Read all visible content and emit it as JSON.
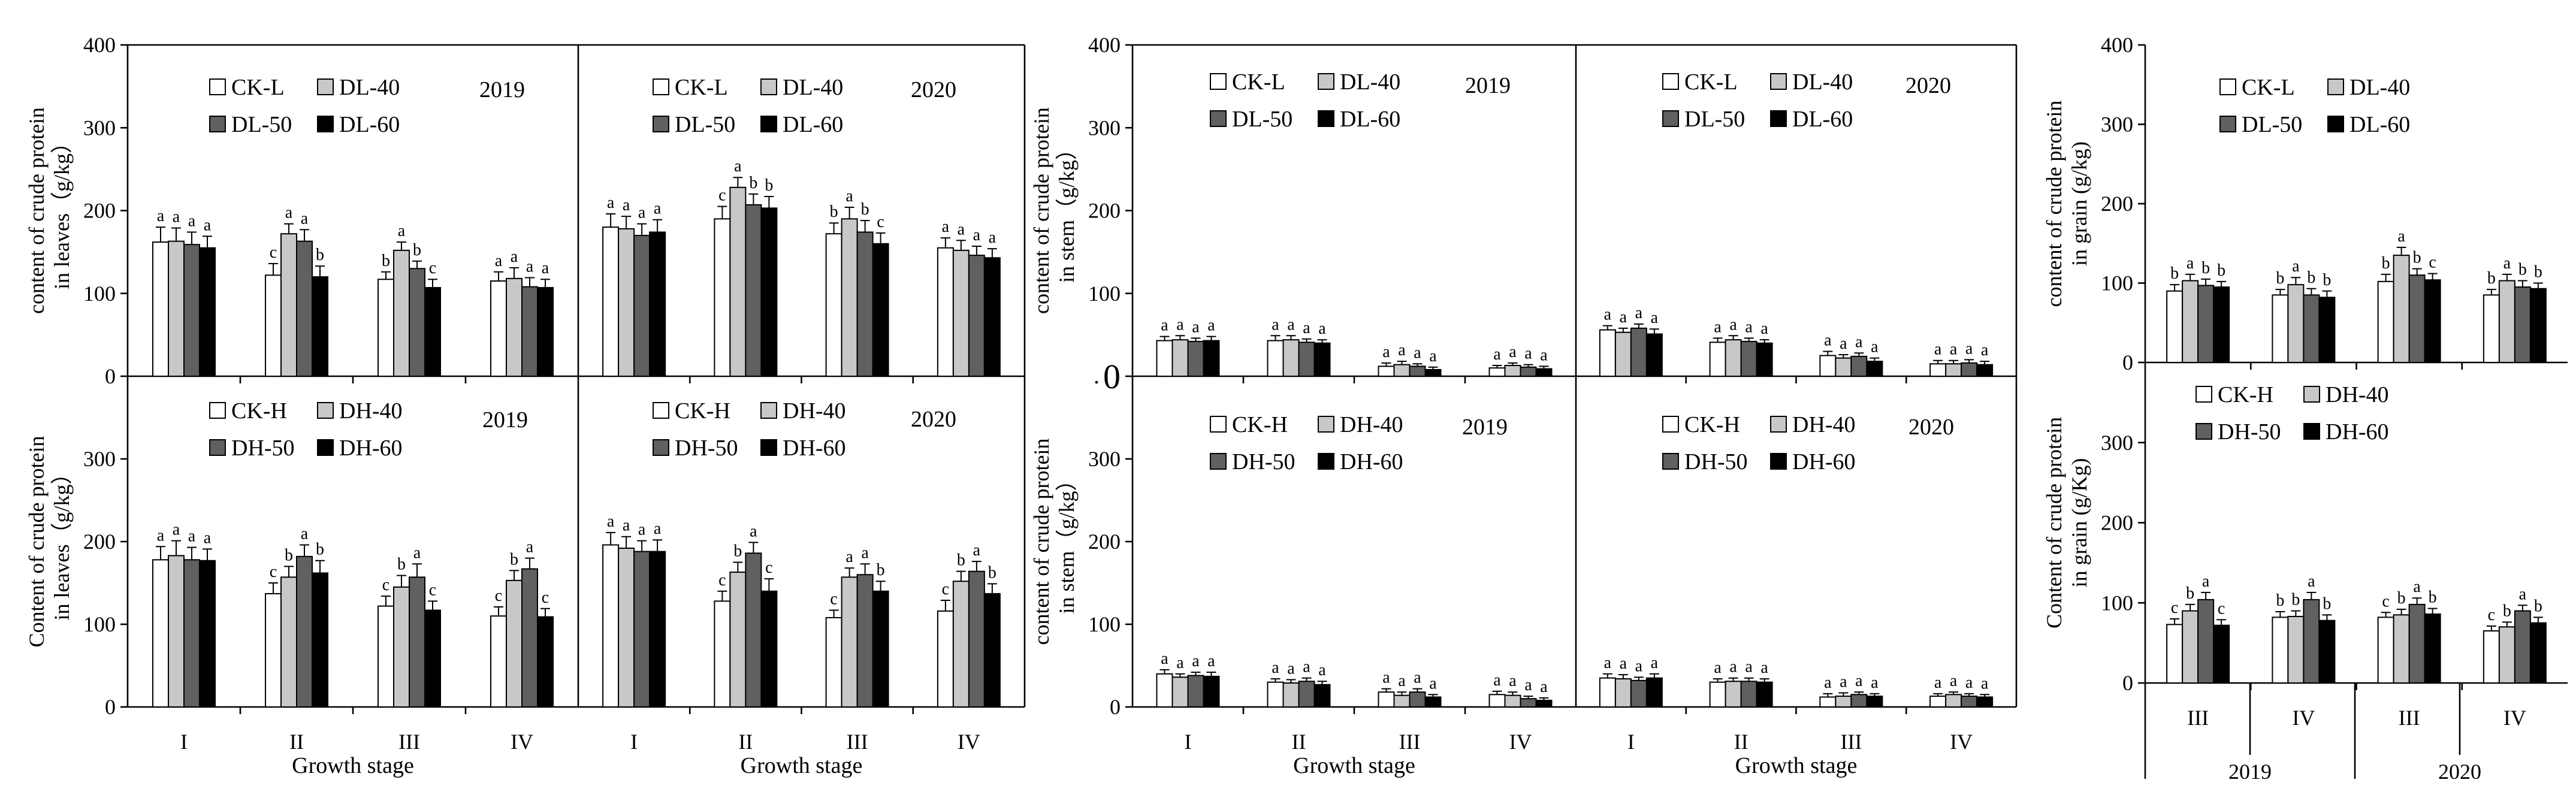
{
  "colors": {
    "CK": "#ffffff",
    "T40": "#c8c8c8",
    "T50": "#606060",
    "T60": "#000000",
    "ink": "#000000"
  },
  "figure": {
    "stray_mark": "."
  },
  "chart_data": [
    {
      "id": "leaf-low-2019",
      "type": "bar",
      "year_label": "2019",
      "ylabel": [
        "content of crude protein",
        "in leaves（g/kg）"
      ],
      "xlabel": "",
      "ylim": [
        0,
        400
      ],
      "yticks": [
        0,
        100,
        200,
        300,
        400
      ],
      "categories": [
        "",
        "",
        "",
        ""
      ],
      "legend": [
        "CK-L",
        "DL-40",
        "DL-50",
        "DL-60"
      ],
      "series": [
        {
          "name": "CK-L",
          "values": [
            162,
            122,
            117,
            115
          ],
          "errors": [
            18,
            14,
            9,
            11
          ],
          "letters": [
            "a",
            "c",
            "b",
            "a"
          ]
        },
        {
          "name": "DL-40",
          "values": [
            163,
            172,
            152,
            118
          ],
          "errors": [
            16,
            12,
            10,
            13
          ],
          "letters": [
            "a",
            "a",
            "a",
            "a"
          ]
        },
        {
          "name": "DL-50",
          "values": [
            159,
            163,
            130,
            108
          ],
          "errors": [
            15,
            14,
            9,
            11
          ],
          "letters": [
            "a",
            "a",
            "b",
            "a"
          ]
        },
        {
          "name": "DL-60",
          "values": [
            155,
            120,
            107,
            107
          ],
          "errors": [
            14,
            13,
            10,
            10
          ],
          "letters": [
            "a",
            "b",
            "c",
            "a"
          ]
        }
      ]
    },
    {
      "id": "leaf-low-2020",
      "type": "bar",
      "year_label": "2020",
      "ylabel": [],
      "xlabel": "",
      "ylim": [
        0,
        400
      ],
      "yticks": [],
      "categories": [
        "",
        "",
        "",
        ""
      ],
      "legend": [
        "CK-L",
        "DL-40",
        "DL-50",
        "DL-60"
      ],
      "series": [
        {
          "name": "CK-L",
          "values": [
            180,
            190,
            172,
            155
          ],
          "errors": [
            16,
            15,
            13,
            12
          ],
          "letters": [
            "a",
            "c",
            "b",
            "a"
          ]
        },
        {
          "name": "DL-40",
          "values": [
            178,
            228,
            190,
            152
          ],
          "errors": [
            15,
            12,
            14,
            12
          ],
          "letters": [
            "a",
            "a",
            "a",
            "a"
          ]
        },
        {
          "name": "DL-50",
          "values": [
            170,
            207,
            174,
            146
          ],
          "errors": [
            14,
            13,
            14,
            11
          ],
          "letters": [
            "a",
            "b",
            "b",
            "a"
          ]
        },
        {
          "name": "DL-60",
          "values": [
            174,
            203,
            160,
            143
          ],
          "errors": [
            15,
            14,
            13,
            11
          ],
          "letters": [
            "a",
            "b",
            "c",
            "a"
          ]
        }
      ]
    },
    {
      "id": "leaf-high-2019",
      "type": "bar",
      "year_label": "2019",
      "ylabel": [
        "Content of crude protein",
        "in leaves（g/kg）"
      ],
      "xlabel": "Growth stage",
      "ylim": [
        0,
        400
      ],
      "yticks": [
        0,
        100,
        200,
        300
      ],
      "categories": [
        "I",
        "II",
        "III",
        "IV"
      ],
      "legend": [
        "CK-H",
        "DH-40",
        "DH-50",
        "DH-60"
      ],
      "series": [
        {
          "name": "CK-H",
          "values": [
            178,
            137,
            122,
            110
          ],
          "errors": [
            16,
            13,
            12,
            11
          ],
          "letters": [
            "a",
            "c",
            "c",
            "c"
          ]
        },
        {
          "name": "DH-40",
          "values": [
            183,
            157,
            145,
            153
          ],
          "errors": [
            18,
            13,
            14,
            12
          ],
          "letters": [
            "a",
            "b",
            "b",
            "b"
          ]
        },
        {
          "name": "DH-50",
          "values": [
            178,
            182,
            157,
            167
          ],
          "errors": [
            15,
            14,
            16,
            13
          ],
          "letters": [
            "a",
            "a",
            "a",
            "a"
          ]
        },
        {
          "name": "DH-60",
          "values": [
            177,
            162,
            117,
            109
          ],
          "errors": [
            14,
            15,
            11,
            10
          ],
          "letters": [
            "a",
            "b",
            "c",
            "c"
          ]
        }
      ]
    },
    {
      "id": "leaf-high-2020",
      "type": "bar",
      "year_label": "2020",
      "ylabel": [],
      "xlabel": "Growth stage",
      "ylim": [
        0,
        400
      ],
      "yticks": [],
      "categories": [
        "I",
        "II",
        "III",
        "IV"
      ],
      "legend": [
        "CK-H",
        "DH-40",
        "DH-50",
        "DH-60"
      ],
      "series": [
        {
          "name": "CK-H",
          "values": [
            196,
            128,
            108,
            116
          ],
          "errors": [
            15,
            12,
            9,
            13
          ],
          "letters": [
            "a",
            "c",
            "c",
            "c"
          ]
        },
        {
          "name": "DH-40",
          "values": [
            192,
            163,
            157,
            152
          ],
          "errors": [
            14,
            12,
            11,
            12
          ],
          "letters": [
            "a",
            "b",
            "a",
            "b"
          ]
        },
        {
          "name": "DH-50",
          "values": [
            188,
            186,
            160,
            164
          ],
          "errors": [
            13,
            13,
            13,
            12
          ],
          "letters": [
            "a",
            "a",
            "a",
            "a"
          ]
        },
        {
          "name": "DH-60",
          "values": [
            188,
            140,
            140,
            137
          ],
          "errors": [
            14,
            15,
            12,
            12
          ],
          "letters": [
            "a",
            "c",
            "b",
            "b"
          ]
        }
      ]
    },
    {
      "id": "stem-low-2019",
      "type": "bar",
      "year_label": "2019",
      "ylabel": [
        "content of crude protein",
        "in stem（g/kg）"
      ],
      "xlabel": "",
      "ylim": [
        0,
        400
      ],
      "yticks": [
        100,
        200,
        300,
        400
      ],
      "zero_label": "0",
      "categories": [
        "",
        "",
        "",
        ""
      ],
      "legend": [
        "CK-L",
        "DL-40",
        "DL-50",
        "DL-60"
      ],
      "series": [
        {
          "name": "CK-L",
          "values": [
            43,
            43,
            12,
            10
          ],
          "errors": [
            5,
            6,
            4,
            3
          ],
          "letters": [
            "a",
            "a",
            "a",
            "a"
          ]
        },
        {
          "name": "DL-40",
          "values": [
            44,
            44,
            14,
            13
          ],
          "errors": [
            5,
            5,
            4,
            3
          ],
          "letters": [
            "a",
            "a",
            "a",
            "a"
          ]
        },
        {
          "name": "DL-50",
          "values": [
            42,
            41,
            12,
            11
          ],
          "errors": [
            4,
            4,
            3,
            3
          ],
          "letters": [
            "a",
            "a",
            "a",
            "a"
          ]
        },
        {
          "name": "DL-60",
          "values": [
            43,
            40,
            8,
            9
          ],
          "errors": [
            5,
            4,
            3,
            3
          ],
          "letters": [
            "a",
            "a",
            "a",
            "a"
          ]
        }
      ]
    },
    {
      "id": "stem-low-2020",
      "type": "bar",
      "year_label": "2020",
      "ylabel": [],
      "xlabel": "",
      "ylim": [
        0,
        400
      ],
      "yticks": [],
      "categories": [
        "",
        "",
        "",
        ""
      ],
      "legend": [
        "CK-L",
        "DL-40",
        "DL-50",
        "DL-60"
      ],
      "series": [
        {
          "name": "CK-L",
          "values": [
            56,
            41,
            25,
            15
          ],
          "errors": [
            5,
            5,
            5,
            4
          ],
          "letters": [
            "a",
            "a",
            "a",
            "a"
          ]
        },
        {
          "name": "DL-40",
          "values": [
            53,
            44,
            22,
            15
          ],
          "errors": [
            5,
            5,
            4,
            4
          ],
          "letters": [
            "a",
            "a",
            "a",
            "a"
          ]
        },
        {
          "name": "DL-50",
          "values": [
            58,
            42,
            24,
            16
          ],
          "errors": [
            5,
            4,
            4,
            4
          ],
          "letters": [
            "a",
            "a",
            "a",
            "a"
          ]
        },
        {
          "name": "DL-60",
          "values": [
            51,
            40,
            18,
            14
          ],
          "errors": [
            6,
            4,
            4,
            4
          ],
          "letters": [
            "a",
            "a",
            "a",
            "a"
          ]
        }
      ]
    },
    {
      "id": "stem-high-2019",
      "type": "bar",
      "year_label": "2019",
      "ylabel": [
        "content of crude protein",
        "in stem（g/kg）"
      ],
      "xlabel": "Growth stage",
      "ylim": [
        0,
        400
      ],
      "yticks": [
        0,
        100,
        200,
        300
      ],
      "categories": [
        "I",
        "II",
        "III",
        "IV"
      ],
      "legend": [
        "CK-H",
        "DH-40",
        "DH-50",
        "DH-60"
      ],
      "series": [
        {
          "name": "CK-H",
          "values": [
            40,
            30,
            18,
            15
          ],
          "errors": [
            5,
            4,
            4,
            4
          ],
          "letters": [
            "a",
            "a",
            "a",
            "a"
          ]
        },
        {
          "name": "DH-40",
          "values": [
            36,
            29,
            14,
            14
          ],
          "errors": [
            4,
            4,
            4,
            4
          ],
          "letters": [
            "a",
            "a",
            "a",
            "a"
          ]
        },
        {
          "name": "DH-50",
          "values": [
            38,
            31,
            18,
            10
          ],
          "errors": [
            4,
            4,
            4,
            3
          ],
          "letters": [
            "a",
            "a",
            "a",
            "a"
          ]
        },
        {
          "name": "DH-60",
          "values": [
            37,
            27,
            12,
            8
          ],
          "errors": [
            5,
            4,
            3,
            3
          ],
          "letters": [
            "a",
            "a",
            "a",
            "a"
          ]
        }
      ]
    },
    {
      "id": "stem-high-2020",
      "type": "bar",
      "year_label": "2020",
      "ylabel": [],
      "xlabel": "Growth stage",
      "ylim": [
        0,
        400
      ],
      "yticks": [],
      "categories": [
        "I",
        "II",
        "III",
        "IV"
      ],
      "legend": [
        "CK-H",
        "DH-40",
        "DH-50",
        "DH-60"
      ],
      "series": [
        {
          "name": "CK-H",
          "values": [
            35,
            30,
            12,
            13
          ],
          "errors": [
            5,
            4,
            4,
            3
          ],
          "letters": [
            "a",
            "a",
            "a",
            "a"
          ]
        },
        {
          "name": "DH-40",
          "values": [
            34,
            31,
            13,
            15
          ],
          "errors": [
            5,
            4,
            4,
            3
          ],
          "letters": [
            "a",
            "a",
            "a",
            "a"
          ]
        },
        {
          "name": "DH-50",
          "values": [
            32,
            31,
            15,
            13
          ],
          "errors": [
            4,
            4,
            3,
            3
          ],
          "letters": [
            "a",
            "a",
            "a",
            "a"
          ]
        },
        {
          "name": "DH-60",
          "values": [
            35,
            30,
            13,
            12
          ],
          "errors": [
            5,
            4,
            3,
            3
          ],
          "letters": [
            "a",
            "a",
            "a",
            "a"
          ]
        }
      ]
    },
    {
      "id": "grain-low",
      "type": "bar",
      "year_label": "",
      "ylabel": [
        "content of crude  protein",
        "in grain (g/kg)"
      ],
      "xlabel": "",
      "ylim": [
        0,
        400
      ],
      "yticks": [
        0,
        100,
        200,
        300,
        400
      ],
      "categories": [
        "",
        "",
        "",
        ""
      ],
      "legend": [
        "CK-L",
        "DL-40",
        "DL-50",
        "DL-60"
      ],
      "series": [
        {
          "name": "CK-L",
          "values": [
            90,
            85,
            102,
            85
          ],
          "errors": [
            8,
            7,
            9,
            7
          ],
          "letters": [
            "b",
            "b",
            "b",
            "b"
          ]
        },
        {
          "name": "DL-40",
          "values": [
            103,
            98,
            135,
            103
          ],
          "errors": [
            8,
            9,
            10,
            8
          ],
          "letters": [
            "a",
            "a",
            "a",
            "a"
          ]
        },
        {
          "name": "DL-50",
          "values": [
            97,
            85,
            110,
            95
          ],
          "errors": [
            8,
            8,
            8,
            8
          ],
          "letters": [
            "b",
            "b",
            "b",
            "b"
          ]
        },
        {
          "name": "DL-60",
          "values": [
            95,
            82,
            104,
            93
          ],
          "errors": [
            7,
            8,
            8,
            7
          ],
          "letters": [
            "b",
            "b",
            "c",
            "b"
          ]
        }
      ]
    },
    {
      "id": "grain-high",
      "type": "bar",
      "year_label": "",
      "ylabel": [
        "Content of crude protein",
        "in grain (g/Kg)"
      ],
      "xlabel": "",
      "ylim": [
        0,
        400
      ],
      "yticks": [
        0,
        100,
        200,
        300
      ],
      "categories": [
        "III",
        "IV",
        "III",
        "IV"
      ],
      "year_groups": [
        "2019",
        "2020"
      ],
      "legend": [
        "CK-H",
        "DH-40",
        "DH-50",
        "DH-60"
      ],
      "series": [
        {
          "name": "CK-H",
          "values": [
            73,
            82,
            82,
            65
          ],
          "errors": [
            7,
            7,
            6,
            6
          ],
          "letters": [
            "c",
            "b",
            "c",
            "c"
          ]
        },
        {
          "name": "DH-40",
          "values": [
            90,
            83,
            85,
            70
          ],
          "errors": [
            8,
            7,
            7,
            6
          ],
          "letters": [
            "b",
            "b",
            "b",
            "b"
          ]
        },
        {
          "name": "DH-50",
          "values": [
            104,
            104,
            98,
            90
          ],
          "errors": [
            9,
            9,
            8,
            7
          ],
          "letters": [
            "a",
            "a",
            "a",
            "a"
          ]
        },
        {
          "name": "DH-60",
          "values": [
            72,
            78,
            86,
            75
          ],
          "errors": [
            7,
            7,
            7,
            7
          ],
          "letters": [
            "c",
            "b",
            "b",
            "b"
          ]
        }
      ]
    }
  ]
}
